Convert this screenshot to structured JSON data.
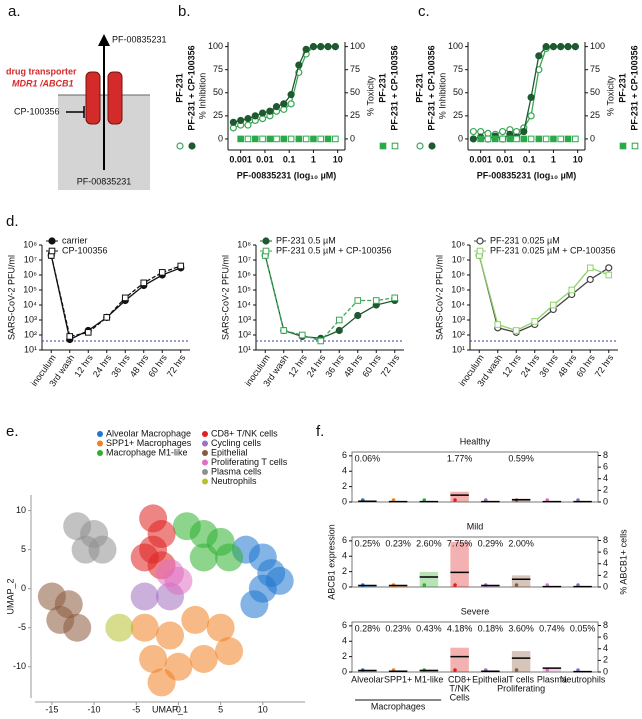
{
  "diagram": {
    "label": "a.",
    "top_compound": "PF-00835231",
    "transporter": [
      "drug transporter",
      "MDR1 /ABCB1"
    ],
    "inhibitor": "CP-100356",
    "bottom_compound": "PF-00835231"
  },
  "chart_data": [
    {
      "type": "line",
      "label": "b.",
      "xlabel": "PF-00835231 (log₁₀ µM)",
      "ylabel": "% Inhibition",
      "y2label": "% Toxicity",
      "xlog": true,
      "x": [
        0.0005,
        0.001,
        0.002,
        0.004,
        0.008,
        0.016,
        0.03,
        0.06,
        0.12,
        0.25,
        0.5,
        1,
        2,
        4,
        8
      ],
      "xlim": [
        0.0003,
        20
      ],
      "xticks": [
        0.001,
        0.01,
        0.1,
        1,
        10
      ],
      "ylim": [
        -12,
        105
      ],
      "yticks": [
        0,
        25,
        50,
        75,
        100
      ],
      "y2lim": [
        -12,
        105
      ],
      "y2ticks": [
        0,
        25,
        50,
        75,
        100
      ],
      "legend": "sides",
      "series": [
        {
          "name": "PF-231",
          "color": "#3aa655",
          "marker": "circle",
          "fill": "open",
          "values": [
            12,
            15,
            15,
            20,
            22,
            25,
            30,
            32,
            38,
            72,
            92,
            100,
            100,
            100,
            100
          ]
        },
        {
          "name": "PF-231 + CP-100356",
          "color": "#1e5a30",
          "marker": "circle",
          "fill": "filled",
          "values": [
            18,
            20,
            22,
            25,
            28,
            30,
            35,
            38,
            48,
            80,
            97,
            100,
            100,
            100,
            100
          ]
        },
        {
          "name": "PF-231",
          "axis": "y2",
          "color": "#2aa84a",
          "marker": "square",
          "fill": "filled",
          "line": false,
          "values": [
            null,
            0,
            null,
            0,
            null,
            0,
            null,
            0,
            null,
            0,
            null,
            0,
            null,
            0,
            null
          ]
        },
        {
          "name": "PF-231 + CP-100356",
          "axis": "y2",
          "color": "#2aa84a",
          "marker": "square",
          "fill": "open",
          "line": false,
          "values": [
            null,
            null,
            0,
            null,
            0,
            null,
            0,
            null,
            0,
            null,
            0,
            null,
            0,
            null,
            0
          ]
        }
      ]
    },
    {
      "type": "line",
      "label": "c.",
      "xlabel": "PF-00835231 (log₁₀ µM)",
      "ylabel": "% Inhibition",
      "y2label": "% Toxicity",
      "xlog": true,
      "x": [
        0.0005,
        0.001,
        0.002,
        0.004,
        0.008,
        0.016,
        0.03,
        0.06,
        0.12,
        0.25,
        0.5,
        1,
        2,
        4,
        8
      ],
      "xlim": [
        0.0003,
        20
      ],
      "xticks": [
        0.001,
        0.01,
        0.1,
        1,
        10
      ],
      "ylim": [
        -12,
        105
      ],
      "yticks": [
        0,
        25,
        50,
        75,
        100
      ],
      "y2lim": [
        -12,
        105
      ],
      "y2ticks": [
        0,
        25,
        50,
        75,
        100
      ],
      "legend": "sides",
      "series": [
        {
          "name": "PF-231",
          "color": "#3aa655",
          "marker": "circle",
          "fill": "open",
          "values": [
            8,
            8,
            6,
            5,
            8,
            10,
            8,
            12,
            25,
            75,
            98,
            100,
            100,
            100,
            100
          ]
        },
        {
          "name": "PF-231 + CP-100356",
          "color": "#1e5a30",
          "marker": "circle",
          "fill": "filled",
          "values": [
            0,
            2,
            0,
            3,
            0,
            5,
            2,
            8,
            45,
            90,
            100,
            100,
            100,
            100,
            100
          ]
        },
        {
          "name": "PF-231",
          "axis": "y2",
          "color": "#2aa84a",
          "marker": "square",
          "fill": "filled",
          "line": false,
          "values": [
            null,
            0,
            null,
            0,
            null,
            0,
            null,
            0,
            null,
            0,
            null,
            0,
            null,
            0,
            null
          ]
        },
        {
          "name": "PF-231 + CP-100356",
          "axis": "y2",
          "color": "#2aa84a",
          "marker": "square",
          "fill": "open",
          "line": false,
          "values": [
            null,
            null,
            0,
            null,
            0,
            null,
            0,
            null,
            0,
            null,
            0,
            null,
            0,
            null,
            0
          ]
        }
      ]
    },
    {
      "type": "line",
      "label": "d.",
      "ylabel": "SARS-CoV-2 PFU/ml",
      "ylog": true,
      "categories": [
        "inoculum",
        "3rd wash",
        "12 hrs",
        "24 hrs",
        "36 hrs",
        "48 hrs",
        "60 hrs",
        "72 hrs"
      ],
      "ylim": [
        10,
        100000000
      ],
      "yticks": [
        {
          "value": 10,
          "label": "10¹"
        },
        {
          "value": 100,
          "label": "10²"
        },
        {
          "value": 1000,
          "label": "10³"
        },
        {
          "value": 10000,
          "label": "10⁴"
        },
        {
          "value": 100000,
          "label": "10⁵"
        },
        {
          "value": 1000000,
          "label": "10⁶"
        },
        {
          "value": 10000000,
          "label": "10⁷"
        },
        {
          "value": 100000000,
          "label": "10⁸"
        }
      ],
      "hline": 40,
      "legend": "upper left",
      "series": [
        {
          "name": "carrier",
          "color": "#111111",
          "marker": "circle",
          "fill": "filled",
          "values": [
            20000000,
            50,
            200,
            1500,
            20000,
            200000,
            1000000,
            3000000
          ]
        },
        {
          "name": "CP-100356",
          "color": "#111111",
          "marker": "square",
          "fill": "open",
          "dash": true,
          "values": [
            20000000,
            80,
            150,
            1500,
            30000,
            300000,
            1500000,
            4000000
          ]
        }
      ]
    },
    {
      "type": "line",
      "ylabel": "SARS-CoV-2 PFU/ml",
      "ylog": true,
      "categories": [
        "inoculum",
        "3rd wash",
        "12 hrs",
        "24 hrs",
        "36 hrs",
        "48 hrs",
        "60 hrs",
        "72 hrs"
      ],
      "ylim": [
        10,
        100000000
      ],
      "yticks": [
        {
          "value": 10,
          "label": "10¹"
        },
        {
          "value": 100,
          "label": "10²"
        },
        {
          "value": 1000,
          "label": "10³"
        },
        {
          "value": 10000,
          "label": "10⁴"
        },
        {
          "value": 100000,
          "label": "10⁵"
        },
        {
          "value": 1000000,
          "label": "10⁶"
        },
        {
          "value": 10000000,
          "label": "10⁷"
        },
        {
          "value": 100000000,
          "label": "10⁸"
        }
      ],
      "hline": 40,
      "legend": "upper left",
      "series": [
        {
          "name": "PF-231 0.5 µM",
          "color": "#1e5a30",
          "marker": "circle",
          "fill": "filled",
          "values": [
            20000000,
            200,
            80,
            60,
            200,
            2000,
            10000,
            20000
          ]
        },
        {
          "name": "PF-231 0.5 µM + CP-100356",
          "color": "#3aa655",
          "marker": "square",
          "fill": "open",
          "dash": true,
          "values": [
            20000000,
            200,
            100,
            40,
            1000,
            20000,
            20000,
            30000
          ]
        }
      ]
    },
    {
      "type": "line",
      "ylabel": "SARS-CoV-2 PFU/ml",
      "ylog": true,
      "categories": [
        "inoculum",
        "3rd wash",
        "12 hrs",
        "24 hrs",
        "36 hrs",
        "48 hrs",
        "60 hrs",
        "72 hrs"
      ],
      "ylim": [
        10,
        100000000
      ],
      "yticks": [
        {
          "value": 10,
          "label": "10¹"
        },
        {
          "value": 100,
          "label": "10²"
        },
        {
          "value": 1000,
          "label": "10³"
        },
        {
          "value": 10000,
          "label": "10⁴"
        },
        {
          "value": 100000,
          "label": "10⁵"
        },
        {
          "value": 1000000,
          "label": "10⁶"
        },
        {
          "value": 10000000,
          "label": "10⁷"
        },
        {
          "value": 100000000,
          "label": "10⁸"
        }
      ],
      "hline": 40,
      "legend": "upper left",
      "series": [
        {
          "name": "PF-231 0.025 µM",
          "color": "#444444",
          "marker": "circle",
          "fill": "open",
          "values": [
            20000000,
            300,
            150,
            500,
            5000,
            50000,
            500000,
            3000000
          ]
        },
        {
          "name": "PF-231 0.025 µM + CP-100356",
          "color": "#8fd16a",
          "marker": "square",
          "fill": "open",
          "values": [
            20000000,
            500,
            200,
            800,
            10000,
            100000,
            3000000,
            1000000
          ]
        }
      ]
    },
    {
      "type": "scatter",
      "label": "e.",
      "xlabel": "UMAP_1",
      "ylabel": "UMAP_2",
      "xlim": [
        -17,
        15
      ],
      "ylim": [
        -14,
        12
      ],
      "xticks": [
        -15,
        -10,
        -5,
        0,
        5,
        10
      ],
      "yticks": [
        -10,
        -5,
        0,
        5,
        10
      ],
      "series": [
        {
          "name": "Alveolar Macrophage",
          "color": "#1f77d0",
          "x": [
            8,
            10,
            11,
            10,
            12,
            9
          ],
          "y": [
            5,
            4,
            2,
            0,
            1,
            -2
          ]
        },
        {
          "name": "SPP1+ Macrophages",
          "color": "#f08020",
          "x": [
            -4,
            -1,
            2,
            5,
            -3,
            0,
            3,
            6,
            -2
          ],
          "y": [
            -5,
            -6,
            -4,
            -5,
            -9,
            -10,
            -9,
            -8,
            -12
          ]
        },
        {
          "name": "Macrophage M1-like",
          "color": "#30b030",
          "x": [
            1,
            3,
            5,
            3,
            6
          ],
          "y": [
            8,
            7,
            6,
            4,
            4
          ]
        },
        {
          "name": "CD8+ T/NK cells",
          "color": "#e02020",
          "x": [
            -3,
            -2,
            -3,
            -2,
            -4
          ],
          "y": [
            9,
            7,
            5,
            3,
            4
          ]
        },
        {
          "name": "Cycling cells",
          "color": "#a070c0",
          "x": [
            -4,
            -1
          ],
          "y": [
            -1,
            -1
          ]
        },
        {
          "name": "Epithelial",
          "color": "#8b5a3c",
          "x": [
            -15,
            -13,
            -14,
            -12
          ],
          "y": [
            -1,
            -2,
            -4,
            -5
          ]
        },
        {
          "name": "Proliferating T cells",
          "color": "#e070c0",
          "x": [
            -1,
            0
          ],
          "y": [
            2,
            1
          ]
        },
        {
          "name": "Plasma cells",
          "color": "#909090",
          "x": [
            -12,
            -10,
            -9,
            -11
          ],
          "y": [
            8,
            7,
            5,
            5
          ]
        },
        {
          "name": "Neutrophils",
          "color": "#b8c030",
          "x": [
            -7
          ],
          "y": [
            -5
          ]
        }
      ]
    },
    {
      "type": "dot",
      "label": "f.",
      "ylabel": "ABCB1 expression",
      "y2label": "% ABCB1+ cells",
      "categories": [
        [
          "Alveolar"
        ],
        [
          "SPP1+"
        ],
        [
          "M1-like"
        ],
        [
          "CD8+",
          "T/NK",
          "Cells"
        ],
        [
          "Epithelial"
        ],
        [
          "T cells",
          "Proliferating"
        ],
        [
          "Plasma"
        ],
        [
          "Neutrophils"
        ]
      ],
      "group_label": "Macrophages",
      "colors": [
        "#1f77d0",
        "#f08020",
        "#30b030",
        "#e02020",
        "#a070c0",
        "#8b5a3c",
        "#e070c0",
        "#8a70c0"
      ],
      "ylim": [
        0,
        6.5
      ],
      "yticks": [
        0,
        2,
        4,
        6
      ],
      "y2lim": [
        0,
        8.6
      ],
      "y2ticks": [
        0,
        2,
        4,
        6,
        8
      ],
      "panels": [
        {
          "title": "Healthy",
          "medians": [
            0.1,
            0.05,
            0.05,
            0.9,
            0.05,
            0.3,
            0.05,
            0.05
          ],
          "values": [
            0.06,
            null,
            null,
            1.77,
            null,
            0.59,
            null,
            null
          ],
          "value_labels": [
            "0.06%",
            null,
            null,
            "1.77%",
            null,
            "0.59%",
            null,
            null
          ]
        },
        {
          "title": "Mild",
          "medians": [
            0.2,
            0.2,
            1.3,
            1.9,
            0.2,
            1.0,
            0.05,
            0.05
          ],
          "values": [
            0.25,
            0.23,
            2.6,
            7.75,
            0.29,
            2,
            null,
            null
          ],
          "value_labels": [
            "0.25%",
            "0.23%",
            "2.60%",
            "7.75%",
            "0.29%",
            "2.00%",
            null,
            null
          ]
        },
        {
          "title": "Severe",
          "medians": [
            0.2,
            0.1,
            0.2,
            2.0,
            0.1,
            1.8,
            0.5,
            0.05
          ],
          "values": [
            0.28,
            0.23,
            0.43,
            4.18,
            0.18,
            3.6,
            0.74,
            0.05
          ],
          "value_labels": [
            "0.28%",
            "0.23%",
            "0.43%",
            "4.18%",
            "0.18%",
            "3.60%",
            "0.74%",
            "0.05%"
          ]
        }
      ]
    }
  ]
}
